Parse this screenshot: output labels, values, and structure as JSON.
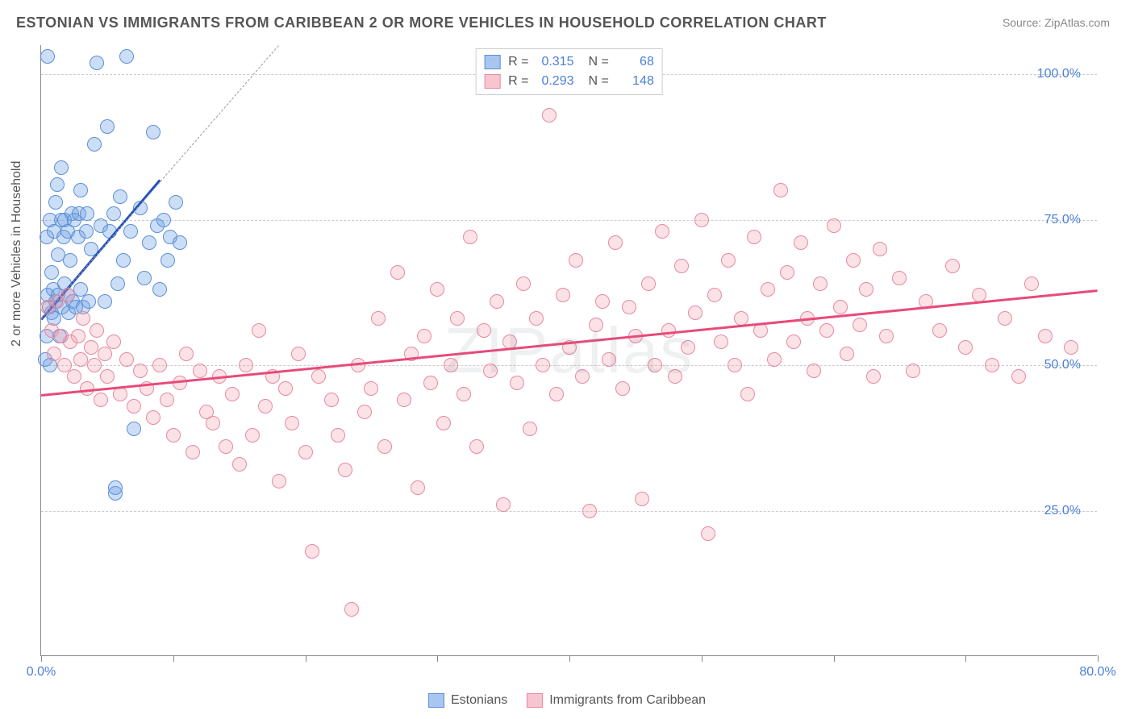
{
  "title": "ESTONIAN VS IMMIGRANTS FROM CARIBBEAN 2 OR MORE VEHICLES IN HOUSEHOLD CORRELATION CHART",
  "source": "Source: ZipAtlas.com",
  "watermark": "ZIPatlas",
  "chart": {
    "type": "scatter",
    "ylabel": "2 or more Vehicles in Household",
    "xlim": [
      0,
      80
    ],
    "ylim": [
      0,
      105
    ],
    "xtick_positions": [
      0,
      10,
      20,
      30,
      40,
      50,
      60,
      70,
      80
    ],
    "xtick_labels": {
      "0": "0.0%",
      "80": "80.0%"
    },
    "ytick_positions": [
      25,
      50,
      75,
      100
    ],
    "ytick_labels": [
      "25.0%",
      "50.0%",
      "75.0%",
      "100.0%"
    ],
    "grid_color": "#cccccc",
    "background_color": "#ffffff",
    "axis_color": "#888888",
    "label_color": "#555555",
    "tick_label_color": "#4a7fd8",
    "marker_size": 18,
    "series": [
      {
        "name": "Estonians",
        "color_fill": "rgba(110,160,230,0.35)",
        "color_border": "#5c8fd6",
        "R": 0.315,
        "N": 68,
        "trend": {
          "x1": 0,
          "y1": 58,
          "x2": 9,
          "y2": 82,
          "color": "#2050c0",
          "width": 2.5
        },
        "trend_dash": {
          "x1": 0,
          "y1": 58,
          "x2": 18,
          "y2": 105
        },
        "points": [
          [
            0.3,
            51
          ],
          [
            0.4,
            55
          ],
          [
            0.4,
            72
          ],
          [
            0.5,
            62
          ],
          [
            0.5,
            103
          ],
          [
            0.6,
            60
          ],
          [
            0.7,
            50
          ],
          [
            0.7,
            75
          ],
          [
            0.8,
            59
          ],
          [
            0.8,
            66
          ],
          [
            0.9,
            63
          ],
          [
            1.0,
            58
          ],
          [
            1.0,
            73
          ],
          [
            1.1,
            61
          ],
          [
            1.1,
            78
          ],
          [
            1.2,
            81
          ],
          [
            1.3,
            62
          ],
          [
            1.3,
            69
          ],
          [
            1.4,
            55
          ],
          [
            1.5,
            75
          ],
          [
            1.5,
            84
          ],
          [
            1.6,
            60
          ],
          [
            1.7,
            72
          ],
          [
            1.8,
            64
          ],
          [
            1.8,
            75
          ],
          [
            2.0,
            62
          ],
          [
            2.0,
            73
          ],
          [
            2.1,
            59
          ],
          [
            2.2,
            68
          ],
          [
            2.3,
            76
          ],
          [
            2.4,
            61
          ],
          [
            2.5,
            75
          ],
          [
            2.6,
            60
          ],
          [
            2.8,
            72
          ],
          [
            2.9,
            76
          ],
          [
            3.0,
            63
          ],
          [
            3.0,
            80
          ],
          [
            3.2,
            60
          ],
          [
            3.4,
            73
          ],
          [
            3.5,
            76
          ],
          [
            3.6,
            61
          ],
          [
            3.8,
            70
          ],
          [
            4.0,
            88
          ],
          [
            4.2,
            102
          ],
          [
            4.5,
            74
          ],
          [
            4.8,
            61
          ],
          [
            5.0,
            91
          ],
          [
            5.2,
            73
          ],
          [
            5.5,
            76
          ],
          [
            5.6,
            28
          ],
          [
            5.6,
            29
          ],
          [
            5.8,
            64
          ],
          [
            6.0,
            79
          ],
          [
            6.2,
            68
          ],
          [
            6.5,
            103
          ],
          [
            6.8,
            73
          ],
          [
            7.0,
            39
          ],
          [
            7.5,
            77
          ],
          [
            7.8,
            65
          ],
          [
            8.2,
            71
          ],
          [
            8.5,
            90
          ],
          [
            8.8,
            74
          ],
          [
            9.0,
            63
          ],
          [
            9.3,
            75
          ],
          [
            9.6,
            68
          ],
          [
            9.8,
            72
          ],
          [
            10.2,
            78
          ],
          [
            10.5,
            71
          ]
        ]
      },
      {
        "name": "Immigrants from Caribbean",
        "color_fill": "rgba(240,150,170,0.28)",
        "color_border": "#e68aa0",
        "R": 0.293,
        "N": 148,
        "trend": {
          "x1": 0,
          "y1": 45,
          "x2": 80,
          "y2": 63,
          "color": "#e84a7a",
          "width": 2.5
        },
        "points": [
          [
            0.5,
            60
          ],
          [
            0.8,
            56
          ],
          [
            1.0,
            52
          ],
          [
            1.2,
            61
          ],
          [
            1.5,
            55
          ],
          [
            1.8,
            50
          ],
          [
            2.0,
            62
          ],
          [
            2.2,
            54
          ],
          [
            2.5,
            48
          ],
          [
            2.8,
            55
          ],
          [
            3.0,
            51
          ],
          [
            3.2,
            58
          ],
          [
            3.5,
            46
          ],
          [
            3.8,
            53
          ],
          [
            4.0,
            50
          ],
          [
            4.2,
            56
          ],
          [
            4.5,
            44
          ],
          [
            4.8,
            52
          ],
          [
            5.0,
            48
          ],
          [
            5.5,
            54
          ],
          [
            6.0,
            45
          ],
          [
            6.5,
            51
          ],
          [
            7.0,
            43
          ],
          [
            7.5,
            49
          ],
          [
            8.0,
            46
          ],
          [
            8.5,
            41
          ],
          [
            9.0,
            50
          ],
          [
            9.5,
            44
          ],
          [
            10.0,
            38
          ],
          [
            10.5,
            47
          ],
          [
            11.0,
            52
          ],
          [
            11.5,
            35
          ],
          [
            12.0,
            49
          ],
          [
            12.5,
            42
          ],
          [
            13.0,
            40
          ],
          [
            13.5,
            48
          ],
          [
            14.0,
            36
          ],
          [
            14.5,
            45
          ],
          [
            15.0,
            33
          ],
          [
            15.5,
            50
          ],
          [
            16.0,
            38
          ],
          [
            16.5,
            56
          ],
          [
            17.0,
            43
          ],
          [
            17.5,
            48
          ],
          [
            18.0,
            30
          ],
          [
            18.5,
            46
          ],
          [
            19.0,
            40
          ],
          [
            19.5,
            52
          ],
          [
            20.0,
            35
          ],
          [
            20.5,
            18
          ],
          [
            21.0,
            48
          ],
          [
            22.0,
            44
          ],
          [
            22.5,
            38
          ],
          [
            23.0,
            32
          ],
          [
            23.5,
            8
          ],
          [
            24.0,
            50
          ],
          [
            24.5,
            42
          ],
          [
            25.0,
            46
          ],
          [
            25.5,
            58
          ],
          [
            26.0,
            36
          ],
          [
            27.0,
            66
          ],
          [
            27.5,
            44
          ],
          [
            28.0,
            52
          ],
          [
            28.5,
            29
          ],
          [
            29.0,
            55
          ],
          [
            29.5,
            47
          ],
          [
            30.0,
            63
          ],
          [
            30.5,
            40
          ],
          [
            31.0,
            50
          ],
          [
            31.5,
            58
          ],
          [
            32.0,
            45
          ],
          [
            32.5,
            72
          ],
          [
            33.0,
            36
          ],
          [
            33.5,
            56
          ],
          [
            34.0,
            49
          ],
          [
            34.5,
            61
          ],
          [
            35.0,
            26
          ],
          [
            35.5,
            54
          ],
          [
            36.0,
            47
          ],
          [
            36.5,
            64
          ],
          [
            37.0,
            39
          ],
          [
            37.5,
            58
          ],
          [
            38.0,
            50
          ],
          [
            38.5,
            93
          ],
          [
            39.0,
            45
          ],
          [
            39.5,
            62
          ],
          [
            40.0,
            53
          ],
          [
            40.5,
            68
          ],
          [
            41.0,
            48
          ],
          [
            41.5,
            25
          ],
          [
            42.0,
            57
          ],
          [
            42.5,
            61
          ],
          [
            43.0,
            51
          ],
          [
            43.5,
            71
          ],
          [
            44.0,
            46
          ],
          [
            44.5,
            60
          ],
          [
            45.0,
            55
          ],
          [
            45.5,
            27
          ],
          [
            46.0,
            64
          ],
          [
            46.5,
            50
          ],
          [
            47.0,
            73
          ],
          [
            47.5,
            56
          ],
          [
            48.0,
            48
          ],
          [
            48.5,
            67
          ],
          [
            49.0,
            53
          ],
          [
            49.5,
            59
          ],
          [
            50.0,
            75
          ],
          [
            50.5,
            21
          ],
          [
            51.0,
            62
          ],
          [
            51.5,
            54
          ],
          [
            52.0,
            68
          ],
          [
            52.5,
            50
          ],
          [
            53.0,
            58
          ],
          [
            53.5,
            45
          ],
          [
            54.0,
            72
          ],
          [
            54.5,
            56
          ],
          [
            55.0,
            63
          ],
          [
            55.5,
            51
          ],
          [
            56.0,
            80
          ],
          [
            56.5,
            66
          ],
          [
            57.0,
            54
          ],
          [
            57.5,
            71
          ],
          [
            58.0,
            58
          ],
          [
            58.5,
            49
          ],
          [
            59.0,
            64
          ],
          [
            59.5,
            56
          ],
          [
            60.0,
            74
          ],
          [
            60.5,
            60
          ],
          [
            61.0,
            52
          ],
          [
            61.5,
            68
          ],
          [
            62.0,
            57
          ],
          [
            62.5,
            63
          ],
          [
            63.0,
            48
          ],
          [
            63.5,
            70
          ],
          [
            64.0,
            55
          ],
          [
            65.0,
            65
          ],
          [
            66.0,
            49
          ],
          [
            67.0,
            61
          ],
          [
            68.0,
            56
          ],
          [
            69.0,
            67
          ],
          [
            70.0,
            53
          ],
          [
            71.0,
            62
          ],
          [
            72.0,
            50
          ],
          [
            73.0,
            58
          ],
          [
            74.0,
            48
          ],
          [
            75.0,
            64
          ],
          [
            76.0,
            55
          ],
          [
            78.0,
            53
          ]
        ]
      }
    ]
  },
  "legend_top": {
    "rows": [
      {
        "swatch": "blue",
        "R_label": "R =",
        "R_val": "0.315",
        "N_label": "N =",
        "N_val": "68"
      },
      {
        "swatch": "pink",
        "R_label": "R =",
        "R_val": "0.293",
        "N_label": "N =",
        "N_val": "148"
      }
    ]
  },
  "legend_bottom": {
    "items": [
      {
        "swatch": "blue",
        "label": "Estonians"
      },
      {
        "swatch": "pink",
        "label": "Immigrants from Caribbean"
      }
    ]
  }
}
